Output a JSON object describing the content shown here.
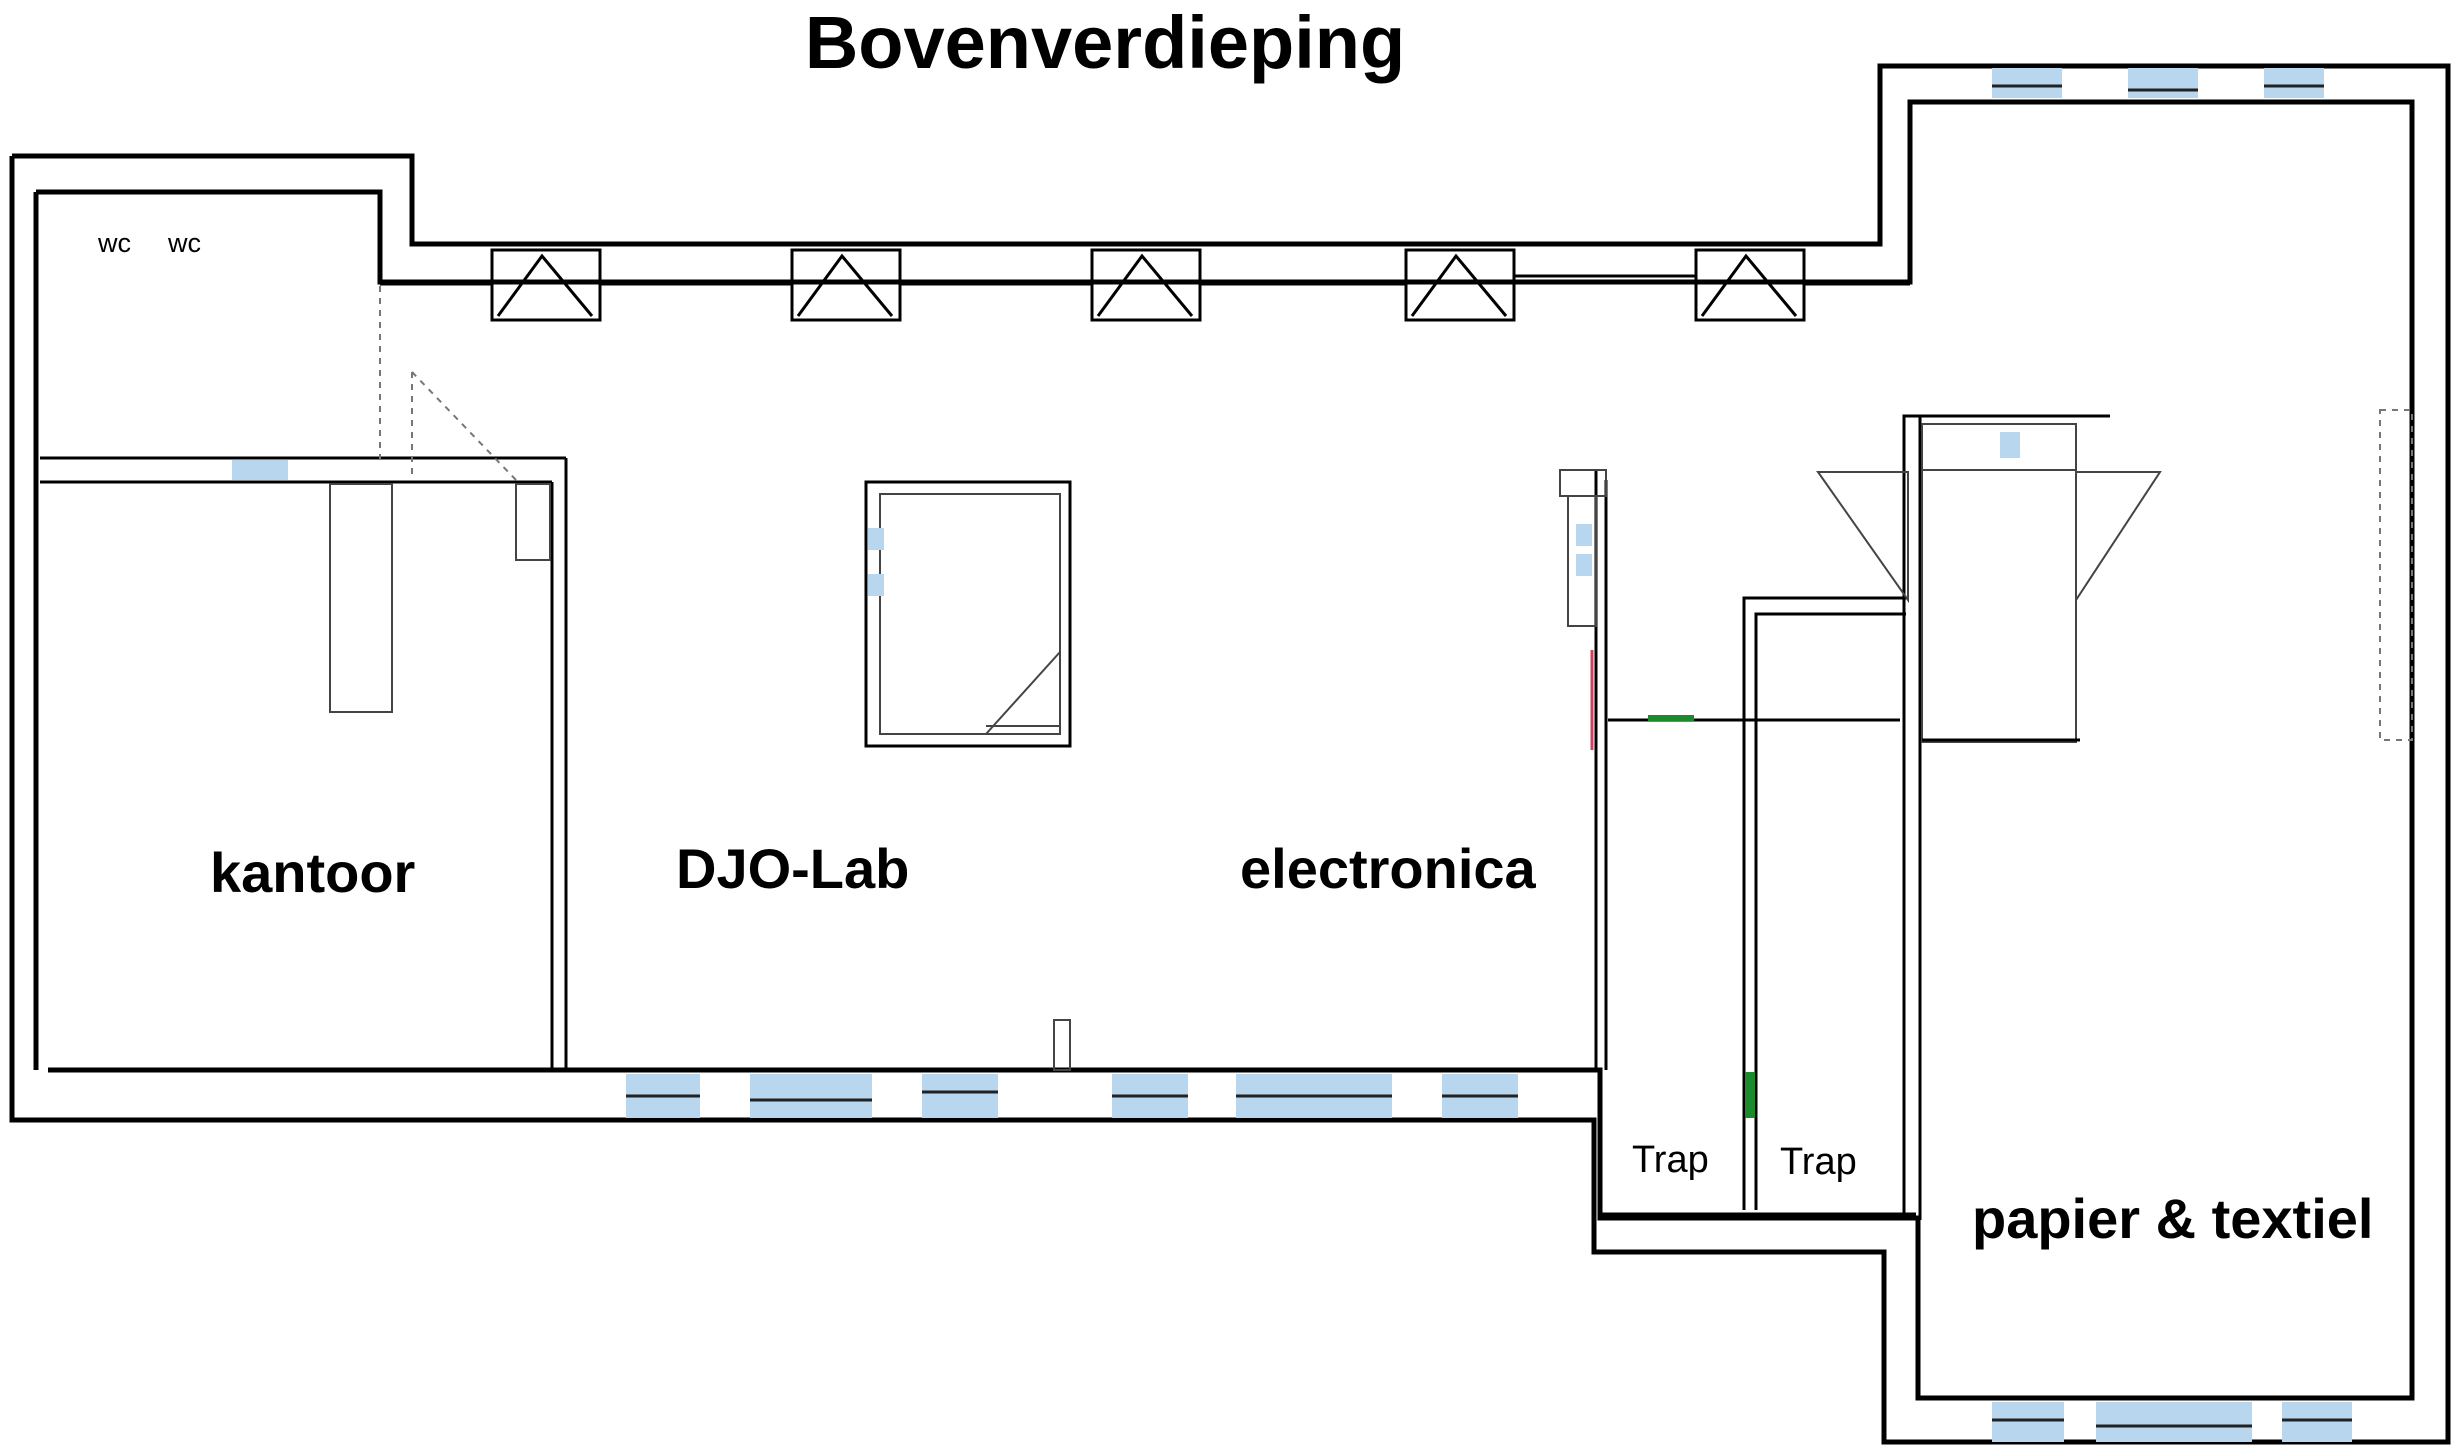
{
  "title": "Bovenverdieping",
  "rooms": {
    "wc1": "wc",
    "wc2": "wc",
    "kantoor": "kantoor",
    "djo_lab": "DJO-Lab",
    "electronica": "electronica",
    "trap1": "Trap",
    "trap2": "Trap",
    "papier_textiel": "papier & textiel"
  },
  "colors": {
    "wall": "#000000",
    "window": "#b8d7ee",
    "door_marker": "#1a8a2a",
    "red_marker": "#d04060"
  }
}
